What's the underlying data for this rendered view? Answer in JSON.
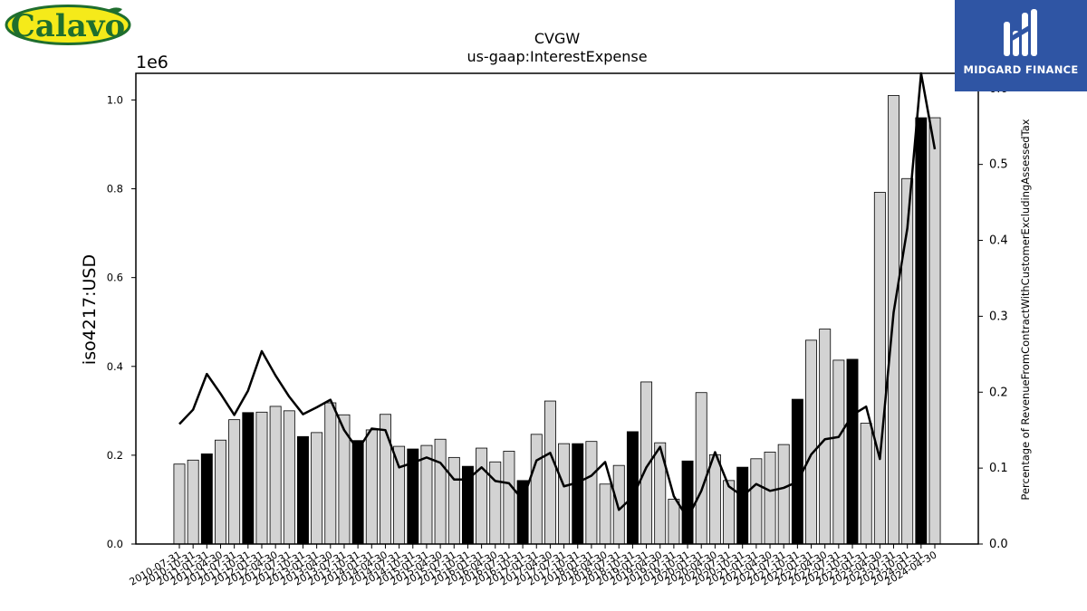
{
  "branding": {
    "left_logo_text": "Calavo",
    "right_logo_text": "MIDGARD FINANCE"
  },
  "colors": {
    "bar_default": "#d3d3d3",
    "bar_highlight": "#000000",
    "line": "#000000",
    "logo_right_bg": "#2f55a4",
    "logo_left_bg": "#f5ea1a",
    "logo_left_text": "#1f6e2e"
  },
  "chart_data": {
    "type": "bar",
    "title": "CVGW",
    "subtitle": "us-gaap:InterestExpense",
    "ylabel": "iso4217:USD",
    "y2label": "Percentage of RevenueFromContractWithCustomerExcludingAssessedTax",
    "y_multiplier": "1e6",
    "ylim": [
      0,
      1.06
    ],
    "y2lim": [
      0,
      0.62
    ],
    "yticks": [
      "0.0",
      "0.2",
      "0.4",
      "0.6",
      "0.8",
      "1.0"
    ],
    "y2ticks": [
      "0.0",
      "0.1",
      "0.2",
      "0.3",
      "0.4",
      "0.5",
      "0.6"
    ],
    "categories": [
      "2010-07-31",
      "2010-10-31",
      "2011-01-31",
      "2011-04-30",
      "2011-07-31",
      "2011-10-31",
      "2012-01-31",
      "2012-04-30",
      "2012-07-31",
      "2012-10-31",
      "2013-01-31",
      "2013-04-30",
      "2013-07-31",
      "2013-10-31",
      "2014-01-31",
      "2014-04-30",
      "2014-07-31",
      "2014-10-31",
      "2015-01-31",
      "2015-04-30",
      "2015-07-31",
      "2015-10-31",
      "2016-01-31",
      "2016-04-30",
      "2016-07-31",
      "2016-10-31",
      "2017-01-31",
      "2017-04-30",
      "2017-07-31",
      "2017-10-31",
      "2018-01-31",
      "2018-04-30",
      "2018-07-31",
      "2018-10-31",
      "2019-01-31",
      "2019-04-30",
      "2019-07-31",
      "2019-10-31",
      "2020-01-31",
      "2020-04-30",
      "2020-07-31",
      "2020-10-31",
      "2021-01-31",
      "2021-04-30",
      "2021-07-31",
      "2021-10-31",
      "2022-01-31",
      "2022-04-30",
      "2022-07-31",
      "2022-10-31",
      "2023-01-31",
      "2023-04-30",
      "2023-07-31",
      "2023-10-31",
      "2024-01-31",
      "2024-04-30"
    ],
    "values": [
      0.18,
      0.189,
      0.203,
      0.234,
      0.28,
      0.296,
      0.297,
      0.31,
      0.3,
      0.242,
      0.251,
      0.318,
      0.291,
      0.233,
      0.257,
      0.292,
      0.22,
      0.214,
      0.222,
      0.236,
      0.195,
      0.175,
      0.216,
      0.185,
      0.209,
      0.143,
      0.247,
      0.322,
      0.226,
      0.226,
      0.231,
      0.135,
      0.177,
      0.253,
      0.365,
      0.228,
      0.101,
      0.187,
      0.341,
      0.201,
      0.143,
      0.173,
      0.192,
      0.207,
      0.224,
      0.326,
      0.459,
      0.484,
      0.414,
      0.416,
      0.272,
      0.792,
      1.01,
      0.823,
      0.96,
      0.96
    ],
    "highlighted_categories": [
      "2011-01-31",
      "2011-10-31",
      "2012-10-31",
      "2013-10-31",
      "2014-10-31",
      "2015-10-31",
      "2016-10-31",
      "2017-10-31",
      "2018-10-31",
      "2019-10-31",
      "2020-10-31",
      "2021-10-31",
      "2022-10-31",
      "2024-01-31"
    ],
    "line_series": {
      "axis": "right",
      "values": [
        0.158,
        0.177,
        0.224,
        0.198,
        0.17,
        0.202,
        0.254,
        0.222,
        0.194,
        0.171,
        0.18,
        0.19,
        0.15,
        0.124,
        0.152,
        0.15,
        0.101,
        0.107,
        0.114,
        0.107,
        0.085,
        0.085,
        0.101,
        0.083,
        0.08,
        0.058,
        0.11,
        0.12,
        0.076,
        0.081,
        0.09,
        0.108,
        0.045,
        0.062,
        0.101,
        0.128,
        0.063,
        0.034,
        0.07,
        0.121,
        0.076,
        0.063,
        0.079,
        0.07,
        0.074,
        0.082,
        0.118,
        0.138,
        0.141,
        0.17,
        0.181,
        0.112,
        0.305,
        0.416,
        0.62,
        0.52
      ]
    }
  }
}
